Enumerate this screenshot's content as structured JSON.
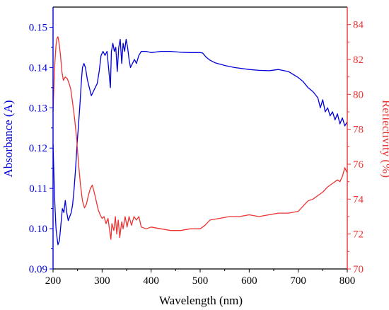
{
  "chart_data": {
    "type": "line",
    "xlabel": "Wavelength (nm)",
    "ylabel_left": "Absorbance (A)",
    "ylabel_right": "Reflectivity (%)",
    "xlim": [
      200,
      800
    ],
    "ylim_left": [
      0.09,
      0.155
    ],
    "ylim_right": [
      70,
      85
    ],
    "x_ticks": [
      200,
      300,
      400,
      500,
      600,
      700,
      800
    ],
    "y_left_ticks": [
      0.09,
      0.1,
      0.11,
      0.12,
      0.13,
      0.14,
      0.15
    ],
    "y_left_tick_labels": [
      "0.09",
      "0.10",
      "0.11",
      "0.12",
      "0.13",
      "0.14",
      "0.15"
    ],
    "y_right_ticks": [
      70,
      72,
      74,
      76,
      78,
      80,
      82,
      84
    ],
    "grid": false,
    "colors": {
      "left": "#0000dd",
      "right": "#ee3333",
      "axis": "#000000"
    },
    "series": [
      {
        "axis": "left",
        "color": "#0000dd",
        "points": [
          [
            200,
            0.121
          ],
          [
            203,
            0.108
          ],
          [
            206,
            0.1
          ],
          [
            208,
            0.098
          ],
          [
            210,
            0.096
          ],
          [
            213,
            0.097
          ],
          [
            216,
            0.101
          ],
          [
            219,
            0.105
          ],
          [
            222,
            0.104
          ],
          [
            225,
            0.107
          ],
          [
            228,
            0.104
          ],
          [
            231,
            0.102
          ],
          [
            234,
            0.103
          ],
          [
            237,
            0.104
          ],
          [
            240,
            0.106
          ],
          [
            243,
            0.11
          ],
          [
            246,
            0.115
          ],
          [
            249,
            0.121
          ],
          [
            252,
            0.126
          ],
          [
            255,
            0.131
          ],
          [
            258,
            0.137
          ],
          [
            260,
            0.14
          ],
          [
            263,
            0.141
          ],
          [
            266,
            0.14
          ],
          [
            270,
            0.137
          ],
          [
            274,
            0.135
          ],
          [
            278,
            0.133
          ],
          [
            282,
            0.134
          ],
          [
            286,
            0.135
          ],
          [
            290,
            0.136
          ],
          [
            294,
            0.139
          ],
          [
            298,
            0.143
          ],
          [
            302,
            0.144
          ],
          [
            306,
            0.143
          ],
          [
            310,
            0.144
          ],
          [
            314,
            0.139
          ],
          [
            317,
            0.135
          ],
          [
            319,
            0.144
          ],
          [
            322,
            0.146
          ],
          [
            325,
            0.144
          ],
          [
            328,
            0.145
          ],
          [
            331,
            0.139
          ],
          [
            334,
            0.145
          ],
          [
            337,
            0.147
          ],
          [
            340,
            0.141
          ],
          [
            343,
            0.146
          ],
          [
            346,
            0.144
          ],
          [
            349,
            0.147
          ],
          [
            352,
            0.145
          ],
          [
            355,
            0.142
          ],
          [
            358,
            0.14
          ],
          [
            362,
            0.141
          ],
          [
            366,
            0.142
          ],
          [
            370,
            0.141
          ],
          [
            375,
            0.143
          ],
          [
            380,
            0.144
          ],
          [
            390,
            0.144
          ],
          [
            400,
            0.1437
          ],
          [
            420,
            0.144
          ],
          [
            440,
            0.144
          ],
          [
            460,
            0.1438
          ],
          [
            480,
            0.1437
          ],
          [
            500,
            0.1437
          ],
          [
            505,
            0.1436
          ],
          [
            512,
            0.1426
          ],
          [
            520,
            0.1418
          ],
          [
            530,
            0.1412
          ],
          [
            550,
            0.1405
          ],
          [
            570,
            0.14
          ],
          [
            600,
            0.1395
          ],
          [
            620,
            0.1393
          ],
          [
            640,
            0.1392
          ],
          [
            660,
            0.1395
          ],
          [
            680,
            0.139
          ],
          [
            700,
            0.1375
          ],
          [
            710,
            0.1365
          ],
          [
            720,
            0.135
          ],
          [
            730,
            0.134
          ],
          [
            740,
            0.1325
          ],
          [
            745,
            0.13
          ],
          [
            750,
            0.132
          ],
          [
            755,
            0.129
          ],
          [
            760,
            0.13
          ],
          [
            765,
            0.128
          ],
          [
            770,
            0.129
          ],
          [
            775,
            0.127
          ],
          [
            780,
            0.1285
          ],
          [
            785,
            0.126
          ],
          [
            790,
            0.1275
          ],
          [
            795,
            0.1255
          ],
          [
            800,
            0.1265
          ]
        ]
      },
      {
        "axis": "right",
        "color": "#ee3333",
        "points": [
          [
            200,
            79.0
          ],
          [
            203,
            81.5
          ],
          [
            206,
            82.8
          ],
          [
            208,
            83.2
          ],
          [
            210,
            83.3
          ],
          [
            212,
            83.0
          ],
          [
            215,
            82.3
          ],
          [
            218,
            81.3
          ],
          [
            221,
            80.8
          ],
          [
            225,
            81.0
          ],
          [
            229,
            80.9
          ],
          [
            233,
            80.6
          ],
          [
            236,
            80.3
          ],
          [
            240,
            79.5
          ],
          [
            244,
            78.6
          ],
          [
            248,
            77.5
          ],
          [
            252,
            76.0
          ],
          [
            256,
            74.8
          ],
          [
            260,
            73.9
          ],
          [
            264,
            73.5
          ],
          [
            268,
            73.7
          ],
          [
            272,
            74.2
          ],
          [
            276,
            74.6
          ],
          [
            280,
            74.8
          ],
          [
            284,
            74.4
          ],
          [
            288,
            73.9
          ],
          [
            292,
            73.4
          ],
          [
            296,
            73.1
          ],
          [
            300,
            72.9
          ],
          [
            304,
            73.0
          ],
          [
            308,
            72.6
          ],
          [
            312,
            72.9
          ],
          [
            315,
            72.3
          ],
          [
            318,
            71.7
          ],
          [
            320,
            72.6
          ],
          [
            324,
            72.2
          ],
          [
            327,
            73.0
          ],
          [
            330,
            72.0
          ],
          [
            333,
            72.8
          ],
          [
            336,
            71.8
          ],
          [
            340,
            72.7
          ],
          [
            343,
            72.3
          ],
          [
            347,
            73.0
          ],
          [
            351,
            72.4
          ],
          [
            355,
            73.0
          ],
          [
            360,
            72.5
          ],
          [
            365,
            73.0
          ],
          [
            370,
            72.8
          ],
          [
            375,
            73.0
          ],
          [
            380,
            72.4
          ],
          [
            390,
            72.3
          ],
          [
            400,
            72.4
          ],
          [
            420,
            72.3
          ],
          [
            440,
            72.2
          ],
          [
            460,
            72.2
          ],
          [
            480,
            72.3
          ],
          [
            500,
            72.3
          ],
          [
            510,
            72.5
          ],
          [
            520,
            72.8
          ],
          [
            540,
            72.9
          ],
          [
            560,
            73.0
          ],
          [
            580,
            73.0
          ],
          [
            600,
            73.1
          ],
          [
            620,
            73.0
          ],
          [
            640,
            73.1
          ],
          [
            660,
            73.2
          ],
          [
            680,
            73.2
          ],
          [
            700,
            73.3
          ],
          [
            710,
            73.6
          ],
          [
            720,
            73.9
          ],
          [
            730,
            74.0
          ],
          [
            740,
            74.2
          ],
          [
            750,
            74.4
          ],
          [
            760,
            74.7
          ],
          [
            770,
            74.9
          ],
          [
            780,
            75.1
          ],
          [
            785,
            75.0
          ],
          [
            790,
            75.3
          ],
          [
            795,
            75.8
          ],
          [
            800,
            75.5
          ]
        ]
      }
    ]
  }
}
